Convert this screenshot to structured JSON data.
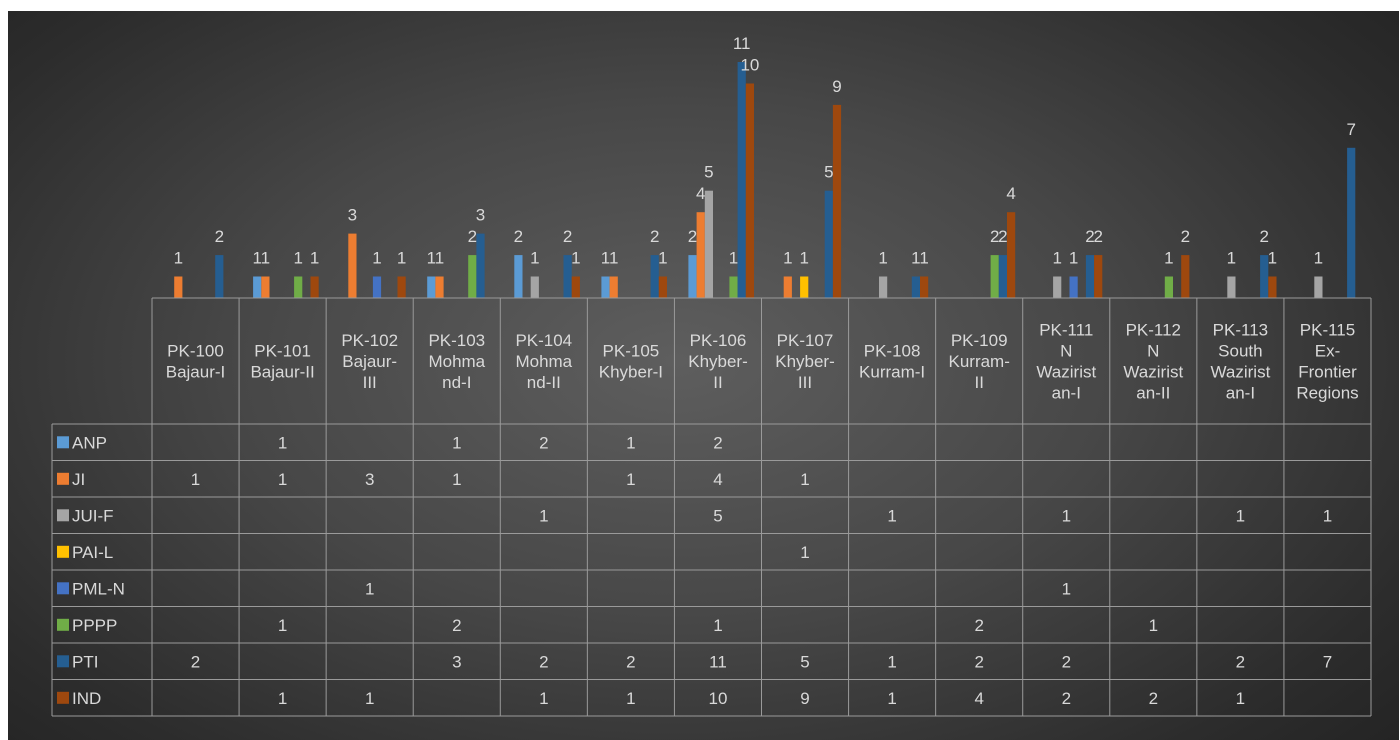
{
  "chart_data": {
    "type": "bar",
    "categories": [
      [
        "PK-100",
        "Bajaur-I"
      ],
      [
        "PK-101",
        "Bajaur-II"
      ],
      [
        "PK-102",
        "Bajaur-",
        "III"
      ],
      [
        "PK-103",
        "Mohma",
        "nd-I"
      ],
      [
        "PK-104",
        "Mohma",
        "nd-II"
      ],
      [
        "PK-105",
        "Khyber-I"
      ],
      [
        "PK-106",
        "Khyber-",
        "II"
      ],
      [
        "PK-107",
        "Khyber-",
        "III"
      ],
      [
        "PK-108",
        "Kurram-I"
      ],
      [
        "PK-109",
        "Kurram-",
        "II"
      ],
      [
        "PK-111",
        "N",
        "Wazirist",
        "an-I"
      ],
      [
        "PK-112",
        "N",
        "Wazirist",
        "an-II"
      ],
      [
        "PK-113",
        "South",
        "Wazirist",
        "an-I"
      ],
      [
        "PK-115",
        "Ex-",
        "Frontier",
        "Regions"
      ]
    ],
    "series": [
      {
        "name": "ANP",
        "color": "#5b9bd5",
        "values": [
          null,
          1,
          null,
          1,
          2,
          1,
          2,
          null,
          null,
          null,
          null,
          null,
          null,
          null
        ]
      },
      {
        "name": "JI",
        "color": "#ed7d31",
        "values": [
          1,
          1,
          3,
          1,
          null,
          1,
          4,
          1,
          null,
          null,
          null,
          null,
          null,
          null
        ]
      },
      {
        "name": "JUI-F",
        "color": "#a5a5a5",
        "values": [
          null,
          null,
          null,
          null,
          1,
          null,
          5,
          null,
          1,
          null,
          1,
          null,
          1,
          1
        ]
      },
      {
        "name": "PAI-L",
        "color": "#ffc000",
        "values": [
          null,
          null,
          null,
          null,
          null,
          null,
          null,
          1,
          null,
          null,
          null,
          null,
          null,
          null
        ]
      },
      {
        "name": "PML-N",
        "color": "#4472c4",
        "values": [
          null,
          null,
          1,
          null,
          null,
          null,
          null,
          null,
          null,
          null,
          1,
          null,
          null,
          null
        ]
      },
      {
        "name": "PPPP",
        "color": "#70ad47",
        "values": [
          null,
          1,
          null,
          2,
          null,
          null,
          1,
          null,
          null,
          2,
          null,
          1,
          null,
          null
        ]
      },
      {
        "name": "PTI",
        "color": "#255e91",
        "values": [
          2,
          null,
          null,
          3,
          2,
          2,
          11,
          5,
          1,
          2,
          2,
          null,
          2,
          7
        ]
      },
      {
        "name": "IND",
        "color": "#9e480e",
        "values": [
          null,
          1,
          1,
          null,
          1,
          1,
          10,
          9,
          1,
          4,
          2,
          2,
          1,
          null
        ]
      }
    ],
    "ylim": [
      0,
      11
    ],
    "legend": "data-table",
    "grid": false
  }
}
